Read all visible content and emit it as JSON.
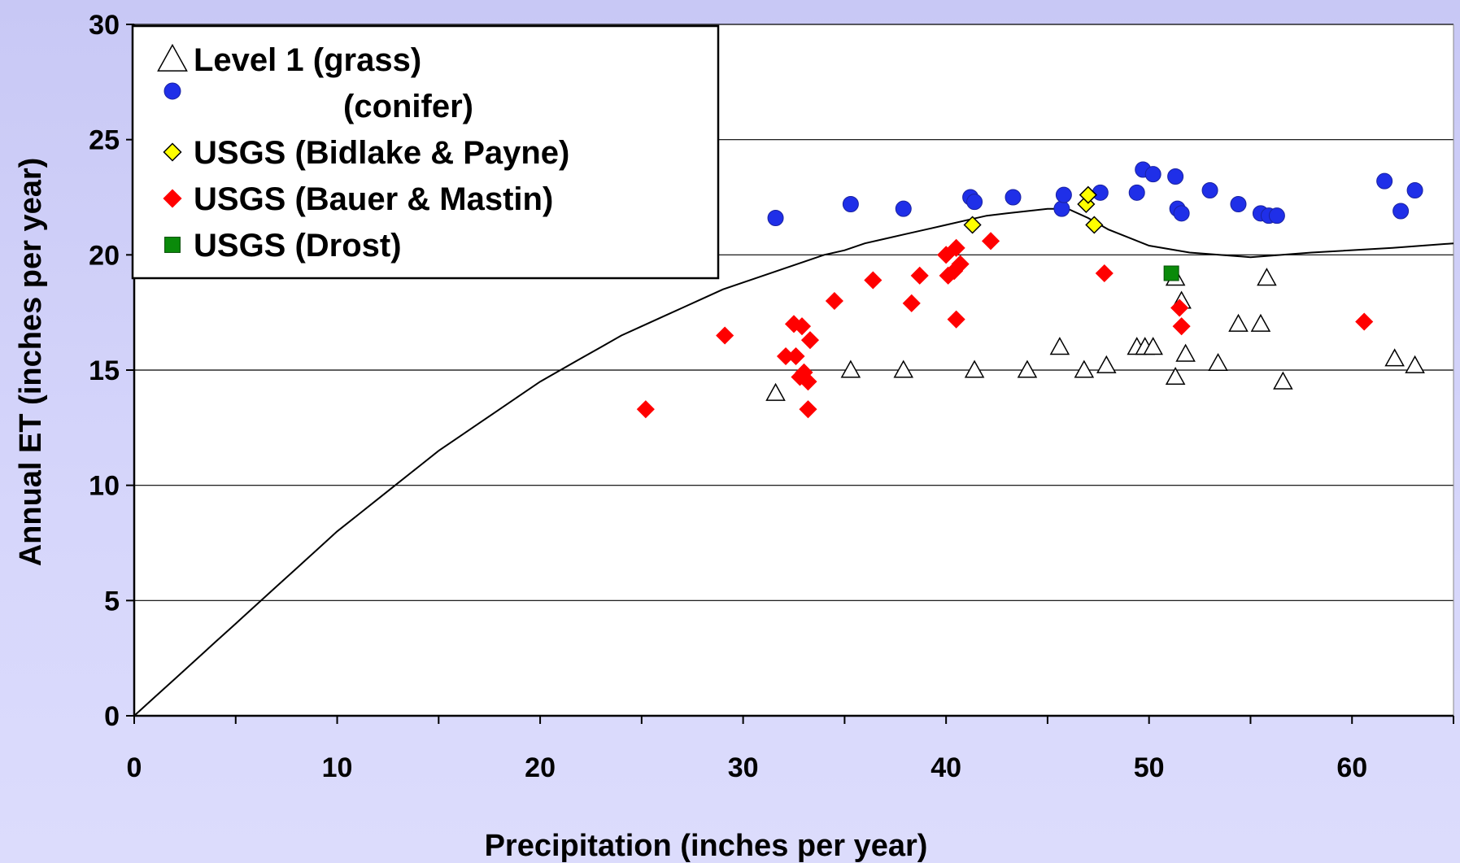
{
  "chart_data": {
    "type": "scatter",
    "xlabel": "Precipitation (inches per year)",
    "ylabel": "Annual ET (inches per year)",
    "xlim": [
      0,
      65
    ],
    "ylim": [
      0,
      30
    ],
    "x_ticks": [
      0,
      10,
      20,
      30,
      40,
      50,
      60
    ],
    "y_ticks": [
      0,
      5,
      10,
      15,
      20,
      25,
      30
    ],
    "grid": "horizontal",
    "legend_position": "top-left",
    "series": [
      {
        "name": "Level 1 (grass)",
        "marker": "open-triangle",
        "color": "#ffffff",
        "points": [
          [
            31.6,
            14.0
          ],
          [
            35.3,
            15.0
          ],
          [
            37.9,
            15.0
          ],
          [
            41.4,
            15.0
          ],
          [
            44.0,
            15.0
          ],
          [
            45.6,
            16.0
          ],
          [
            46.8,
            15.0
          ],
          [
            47.9,
            15.2
          ],
          [
            49.4,
            16.0
          ],
          [
            49.8,
            16.0
          ],
          [
            50.2,
            16.0
          ],
          [
            51.3,
            14.7
          ],
          [
            51.3,
            19.0
          ],
          [
            51.6,
            18.0
          ],
          [
            51.8,
            15.7
          ],
          [
            53.4,
            15.3
          ],
          [
            54.4,
            17.0
          ],
          [
            55.5,
            17.0
          ],
          [
            55.8,
            19.0
          ],
          [
            56.6,
            14.5
          ],
          [
            62.1,
            15.5
          ],
          [
            63.1,
            15.2
          ]
        ]
      },
      {
        "name": "(conifer)",
        "marker": "circle",
        "color": "#1f2fe8",
        "points": [
          [
            31.6,
            21.6
          ],
          [
            35.3,
            22.2
          ],
          [
            37.9,
            22.0
          ],
          [
            41.2,
            22.5
          ],
          [
            41.4,
            22.3
          ],
          [
            43.3,
            22.5
          ],
          [
            45.7,
            22.0
          ],
          [
            45.8,
            22.6
          ],
          [
            47.6,
            22.7
          ],
          [
            49.4,
            22.7
          ],
          [
            49.7,
            23.7
          ],
          [
            50.2,
            23.5
          ],
          [
            51.3,
            23.4
          ],
          [
            51.4,
            22.0
          ],
          [
            51.6,
            21.8
          ],
          [
            53.0,
            22.8
          ],
          [
            54.4,
            22.2
          ],
          [
            55.5,
            21.8
          ],
          [
            55.9,
            21.7
          ],
          [
            56.3,
            21.7
          ],
          [
            61.6,
            23.2
          ],
          [
            62.4,
            21.9
          ],
          [
            63.1,
            22.8
          ]
        ]
      },
      {
        "name": "USGS (Bidlake & Payne)",
        "marker": "diamond",
        "color": "#ffff00",
        "points": [
          [
            41.3,
            21.3
          ],
          [
            46.9,
            22.2
          ],
          [
            47.0,
            22.6
          ],
          [
            47.3,
            21.3
          ]
        ]
      },
      {
        "name": "USGS (Bauer & Mastin)",
        "marker": "diamond",
        "color": "#ff0000",
        "points": [
          [
            25.2,
            13.3
          ],
          [
            29.1,
            16.5
          ],
          [
            32.1,
            15.6
          ],
          [
            32.5,
            17.0
          ],
          [
            32.6,
            15.6
          ],
          [
            32.8,
            14.7
          ],
          [
            32.9,
            16.9
          ],
          [
            33.0,
            14.9
          ],
          [
            33.2,
            13.3
          ],
          [
            33.2,
            14.5
          ],
          [
            33.3,
            16.3
          ],
          [
            34.5,
            18.0
          ],
          [
            36.4,
            18.9
          ],
          [
            38.3,
            17.9
          ],
          [
            38.7,
            19.1
          ],
          [
            40.0,
            20.0
          ],
          [
            40.1,
            19.1
          ],
          [
            40.4,
            19.3
          ],
          [
            40.5,
            20.3
          ],
          [
            40.5,
            17.2
          ],
          [
            40.7,
            19.6
          ],
          [
            42.2,
            20.6
          ],
          [
            47.8,
            19.2
          ],
          [
            51.5,
            17.7
          ],
          [
            51.6,
            16.9
          ],
          [
            60.6,
            17.1
          ]
        ]
      },
      {
        "name": "USGS (Drost)",
        "marker": "square",
        "color": "#0a8a0a",
        "points": [
          [
            51.1,
            19.2
          ]
        ]
      }
    ],
    "curve": [
      [
        0,
        0
      ],
      [
        1,
        0.8
      ],
      [
        2,
        1.6
      ],
      [
        3,
        2.4
      ],
      [
        4,
        3.2
      ],
      [
        5,
        4.0
      ],
      [
        6,
        4.8
      ],
      [
        7,
        5.6
      ],
      [
        8,
        6.4
      ],
      [
        9,
        7.2
      ],
      [
        10,
        8.0
      ],
      [
        11,
        8.7
      ],
      [
        12,
        9.4
      ],
      [
        13,
        10.1
      ],
      [
        14,
        10.8
      ],
      [
        15,
        11.5
      ],
      [
        16,
        12.1
      ],
      [
        17,
        12.7
      ],
      [
        18,
        13.3
      ],
      [
        19,
        13.9
      ],
      [
        20,
        14.5
      ],
      [
        21,
        15.0
      ],
      [
        22,
        15.5
      ],
      [
        23,
        16.0
      ],
      [
        24,
        16.5
      ],
      [
        25,
        16.9
      ],
      [
        26,
        17.3
      ],
      [
        27,
        17.7
      ],
      [
        28,
        18.1
      ],
      [
        29,
        18.5
      ],
      [
        30,
        18.8
      ],
      [
        31,
        19.1
      ],
      [
        32,
        19.4
      ],
      [
        33,
        19.7
      ],
      [
        34,
        20.0
      ],
      [
        35,
        20.2
      ],
      [
        36,
        20.5
      ],
      [
        37,
        20.7
      ],
      [
        38,
        20.9
      ],
      [
        39,
        21.1
      ],
      [
        40,
        21.3
      ],
      [
        41,
        21.5
      ],
      [
        42,
        21.7
      ],
      [
        43,
        21.8
      ],
      [
        44,
        21.9
      ],
      [
        45,
        22.0
      ],
      [
        46,
        22.0
      ],
      [
        47,
        21.6
      ],
      [
        48,
        21.1
      ],
      [
        50,
        20.4
      ],
      [
        52,
        20.1
      ],
      [
        55,
        19.9
      ],
      [
        58,
        20.1
      ],
      [
        62,
        20.3
      ],
      [
        65,
        20.5
      ]
    ]
  }
}
